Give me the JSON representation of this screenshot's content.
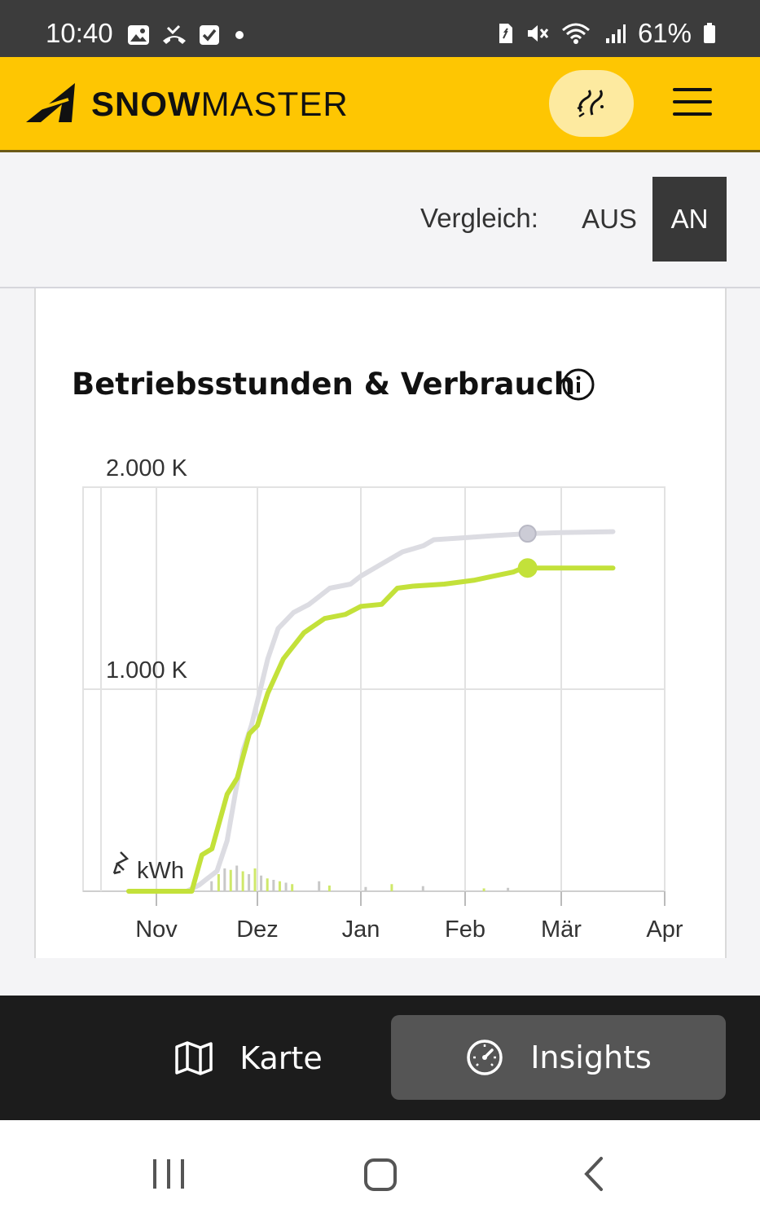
{
  "status_bar": {
    "time": "10:40",
    "battery": "61%"
  },
  "app": {
    "brand_bold": "SNOW",
    "brand_light": "MASTER"
  },
  "compare": {
    "label": "Vergleich:",
    "off": "AUS",
    "on": "AN",
    "selected": "AN"
  },
  "card": {
    "title": "Betriebsstunden & Verbrauch",
    "unit_label": "kWh"
  },
  "chart_data": {
    "type": "line",
    "y_tick_labels": [
      "1.000 K",
      "2.000 K"
    ],
    "ylim": [
      0,
      2000
    ],
    "x_tick_labels": [
      "Nov",
      "Dez",
      "Jan",
      "Feb",
      "Mär",
      "Apr"
    ],
    "grid": true,
    "series": [
      {
        "color": "#dcdce2",
        "points": [
          [
            0.5,
            0
          ],
          [
            1.3,
            0
          ],
          [
            1.42,
            30
          ],
          [
            1.6,
            100
          ],
          [
            1.7,
            250
          ],
          [
            1.78,
            480
          ],
          [
            1.86,
            700
          ],
          [
            1.94,
            820
          ],
          [
            2.02,
            980
          ],
          [
            2.1,
            1150
          ],
          [
            2.2,
            1300
          ],
          [
            2.35,
            1380
          ],
          [
            2.5,
            1420
          ],
          [
            2.7,
            1500
          ],
          [
            2.9,
            1520
          ],
          [
            3.0,
            1560
          ],
          [
            3.2,
            1620
          ],
          [
            3.4,
            1680
          ],
          [
            3.6,
            1710
          ],
          [
            3.7,
            1740
          ],
          [
            4.0,
            1750
          ],
          [
            4.3,
            1760
          ],
          [
            4.65,
            1770
          ],
          [
            5.0,
            1775
          ],
          [
            5.5,
            1780
          ]
        ],
        "marker_at": [
          4.65,
          1770
        ]
      },
      {
        "color": "#c3e13a",
        "points": [
          [
            0.5,
            0
          ],
          [
            1.35,
            0
          ],
          [
            1.45,
            180
          ],
          [
            1.55,
            210
          ],
          [
            1.7,
            480
          ],
          [
            1.8,
            560
          ],
          [
            1.92,
            780
          ],
          [
            2.0,
            820
          ],
          [
            2.1,
            980
          ],
          [
            2.25,
            1150
          ],
          [
            2.45,
            1280
          ],
          [
            2.65,
            1350
          ],
          [
            2.85,
            1370
          ],
          [
            3.0,
            1410
          ],
          [
            3.2,
            1420
          ],
          [
            3.35,
            1500
          ],
          [
            3.5,
            1510
          ],
          [
            3.8,
            1520
          ],
          [
            4.1,
            1540
          ],
          [
            4.3,
            1560
          ],
          [
            4.5,
            1580
          ],
          [
            4.6,
            1600
          ],
          [
            4.65,
            1600
          ],
          [
            5.0,
            1600
          ],
          [
            5.5,
            1600
          ]
        ],
        "marker_at": [
          4.65,
          1600
        ]
      }
    ],
    "bars": [
      {
        "x": 1.55,
        "h": 35
      },
      {
        "x": 1.62,
        "h": 60
      },
      {
        "x": 1.68,
        "h": 80
      },
      {
        "x": 1.74,
        "h": 75
      },
      {
        "x": 1.8,
        "h": 90
      },
      {
        "x": 1.86,
        "h": 70
      },
      {
        "x": 1.92,
        "h": 60
      },
      {
        "x": 1.98,
        "h": 80
      },
      {
        "x": 2.04,
        "h": 55
      },
      {
        "x": 2.1,
        "h": 45
      },
      {
        "x": 2.16,
        "h": 40
      },
      {
        "x": 2.22,
        "h": 35
      },
      {
        "x": 2.28,
        "h": 30
      },
      {
        "x": 2.34,
        "h": 25
      },
      {
        "x": 2.6,
        "h": 35
      },
      {
        "x": 2.7,
        "h": 20
      },
      {
        "x": 3.05,
        "h": 15
      },
      {
        "x": 3.3,
        "h": 25
      },
      {
        "x": 3.6,
        "h": 18
      },
      {
        "x": 4.2,
        "h": 10
      },
      {
        "x": 4.45,
        "h": 12
      }
    ]
  },
  "bottom_nav": {
    "karte": "Karte",
    "insights": "Insights"
  }
}
